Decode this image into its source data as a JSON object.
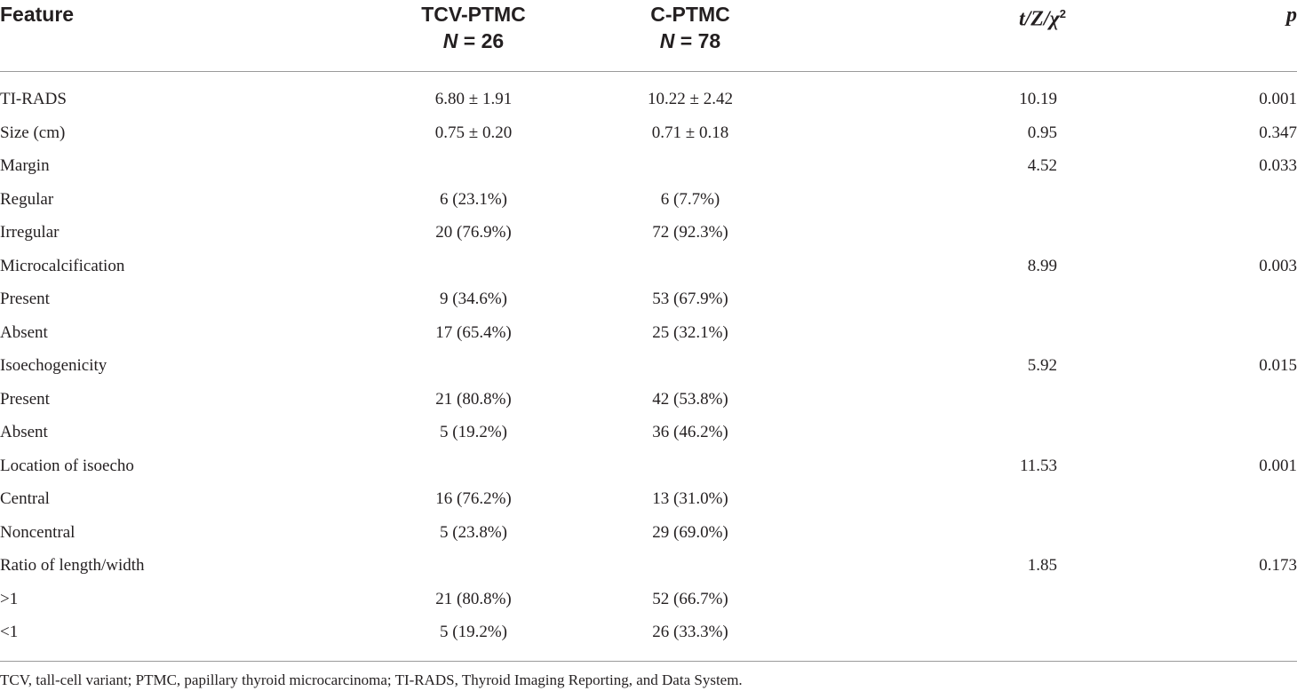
{
  "table": {
    "headers": {
      "feature": "Feature",
      "tcv": "TCV-PTMC",
      "tcv_n": "N = 26",
      "c": "C-PTMC",
      "c_n": "N = 78",
      "stat": "t/Z/χ",
      "stat_sup": "2",
      "p": "p"
    },
    "rows": [
      {
        "feature": "TI-RADS",
        "tcv": "6.80 ± 1.91",
        "c": "10.22 ± 2.42",
        "stat": "10.19",
        "p": "0.001"
      },
      {
        "feature": "Size (cm)",
        "tcv": "0.75 ± 0.20",
        "c": "0.71 ± 0.18",
        "stat": "0.95",
        "p": "0.347"
      },
      {
        "feature": "Margin",
        "tcv": "",
        "c": "",
        "stat": "4.52",
        "p": "0.033"
      },
      {
        "feature": "Regular",
        "tcv": "6 (23.1%)",
        "c": "6 (7.7%)",
        "stat": "",
        "p": ""
      },
      {
        "feature": "Irregular",
        "tcv": "20 (76.9%)",
        "c": "72 (92.3%)",
        "stat": "",
        "p": ""
      },
      {
        "feature": "Microcalcification",
        "tcv": "",
        "c": "",
        "stat": "8.99",
        "p": "0.003"
      },
      {
        "feature": "Present",
        "tcv": "9 (34.6%)",
        "c": "53 (67.9%)",
        "stat": "",
        "p": ""
      },
      {
        "feature": "Absent",
        "tcv": "17 (65.4%)",
        "c": "25 (32.1%)",
        "stat": "",
        "p": ""
      },
      {
        "feature": "Isoechogenicity",
        "tcv": "",
        "c": "",
        "stat": "5.92",
        "p": "0.015"
      },
      {
        "feature": "Present",
        "tcv": "21 (80.8%)",
        "c": "42 (53.8%)",
        "stat": "",
        "p": ""
      },
      {
        "feature": "Absent",
        "tcv": "5 (19.2%)",
        "c": "36 (46.2%)",
        "stat": "",
        "p": ""
      },
      {
        "feature": "Location of isoecho",
        "tcv": "",
        "c": "",
        "stat": "11.53",
        "p": "0.001"
      },
      {
        "feature": "Central",
        "tcv": "16 (76.2%)",
        "c": "13 (31.0%)",
        "stat": "",
        "p": ""
      },
      {
        "feature": "Noncentral",
        "tcv": "5 (23.8%)",
        "c": "29 (69.0%)",
        "stat": "",
        "p": ""
      },
      {
        "feature": "Ratio of length/width",
        "tcv": "",
        "c": "",
        "stat": "1.85",
        "p": "0.173"
      },
      {
        "feature": ">1",
        "tcv": "21 (80.8%)",
        "c": "52 (66.7%)",
        "stat": "",
        "p": ""
      },
      {
        "feature": "<1",
        "tcv": "5 (19.2%)",
        "c": "26 (33.3%)",
        "stat": "",
        "p": ""
      }
    ]
  },
  "footnote": "TCV, tall-cell variant; PTMC, papillary thyroid microcarcinoma; TI-RADS, Thyroid Imaging Reporting, and Data System."
}
